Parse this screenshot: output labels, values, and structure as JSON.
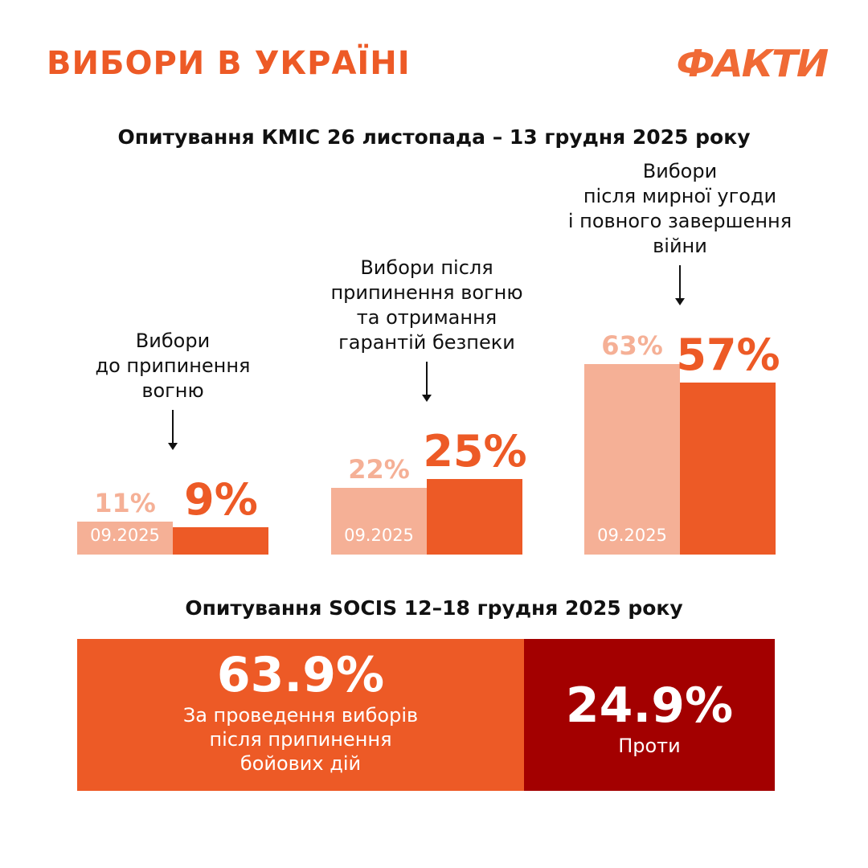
{
  "header": {
    "title": "ВИБОРИ В УКРАЇНІ",
    "logo": "ФАКТИ"
  },
  "colors": {
    "accent": "#ED5A26",
    "previous": "#F5B096",
    "against": "#A30000"
  },
  "chart_data": [
    {
      "type": "bar",
      "title": "Опитування КМІС 26 листопада – 13 грудня 2025 року",
      "previous_label": "09.2025",
      "categories": [
        "Вибори до припинення вогню",
        "Вибори після припинення вогню та отримання гарантій безпеки",
        "Вибори після мирної угоди і повного завершення війни"
      ],
      "category_lines": [
        [
          "Вибори",
          "до припинення",
          "вогню"
        ],
        [
          "Вибори після",
          "припинення вогню",
          "та отримання",
          "гарантій безпеки"
        ],
        [
          "Вибори",
          "після мирної угоди",
          "і повного завершення",
          "війни"
        ]
      ],
      "series": [
        {
          "name": "09.2025",
          "values": [
            11,
            22,
            63
          ],
          "labels": [
            "11%",
            "22%",
            "63%"
          ]
        },
        {
          "values": [
            9,
            25,
            57
          ],
          "labels": [
            "9%",
            "25%",
            "57%"
          ]
        }
      ]
    },
    {
      "type": "bar",
      "title": "Опитування SOCIS 12–18 грудня 2025 року",
      "categories": [
        "За проведення виборів після припинення бойових дій",
        "Проти"
      ],
      "values": [
        63.9,
        24.9
      ],
      "labels": [
        "63.9%",
        "24.9%"
      ],
      "desc_lines": [
        [
          "За проведення виборів",
          "після припинення",
          "бойових дій"
        ],
        [
          "Проти"
        ]
      ]
    }
  ]
}
